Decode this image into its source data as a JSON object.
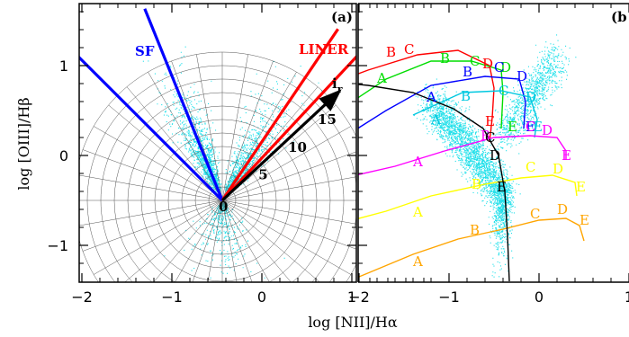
{
  "chart_data": [
    {
      "panel": "(a)",
      "type": "scatter",
      "xlabel": "log [NII]/Hα",
      "ylabel": "log [OIII]/Hβ",
      "xlim": [
        -2.3,
        1.1
      ],
      "ylim": [
        -1.45,
        1.7
      ],
      "x_ticks": [
        "−2",
        "−1",
        "0",
        "1"
      ],
      "y_ticks": [
        "−1",
        "0",
        "1"
      ],
      "origin": [
        -0.44,
        -0.5
      ],
      "polar_grid": {
        "r_step": 0.1,
        "r_max": 1.1,
        "angle_step_deg": 10
      },
      "lines": [
        {
          "name": "SF",
          "color": "#0000ff",
          "angles_deg": [
            135,
            112
          ]
        },
        {
          "name": "LINER",
          "color": "#ff0000",
          "angles_deg": [
            56,
            47
          ]
        }
      ],
      "arrow": {
        "label": "i",
        "subscript": "r",
        "angle_deg": 43,
        "length": 1.75,
        "color": "#000000"
      },
      "arrow_ticks": [
        {
          "label": "0",
          "r": 0.0
        },
        {
          "label": "5",
          "r": 0.55
        },
        {
          "label": "10",
          "r": 1.0
        },
        {
          "label": "15",
          "r": 1.45
        }
      ],
      "labels": {
        "sf": "SF",
        "liner": "LINER",
        "panel": "(a)"
      }
    },
    {
      "panel": "(b)",
      "type": "line",
      "xlabel": "log [NII]/Hα",
      "xlim": [
        -2.3,
        1.1
      ],
      "ylim": [
        -1.45,
        1.7
      ],
      "x_ticks": [
        "−2",
        "−1",
        "0",
        "1"
      ],
      "marker_labels": [
        "A",
        "B",
        "C",
        "D",
        "E"
      ],
      "series": [
        {
          "color": "#ff0000",
          "points": [
            [
              -2.3,
              0.8
            ],
            [
              -1.9,
              0.95
            ],
            [
              -1.35,
              1.12
            ],
            [
              -0.9,
              1.17
            ],
            [
              -0.55,
              1.0
            ],
            [
              -0.5,
              0.75
            ],
            [
              -0.52,
              0.42
            ],
            [
              -0.55,
              0.15
            ]
          ]
        },
        {
          "color": "#00dd00",
          "points": [
            [
              -2.3,
              0.45
            ],
            [
              -1.7,
              0.85
            ],
            [
              -1.2,
              1.05
            ],
            [
              -0.75,
              1.05
            ],
            [
              -0.42,
              0.95
            ],
            [
              -0.4,
              0.7
            ],
            [
              -0.42,
              0.3
            ]
          ]
        },
        {
          "color": "#0000ff",
          "points": [
            [
              -2.3,
              0.12
            ],
            [
              -1.7,
              0.5
            ],
            [
              -1.2,
              0.78
            ],
            [
              -0.6,
              0.88
            ],
            [
              -0.22,
              0.85
            ],
            [
              -0.15,
              0.6
            ],
            [
              -0.17,
              0.3
            ]
          ]
        },
        {
          "color": "#00c8e0",
          "points": [
            [
              -1.4,
              0.45
            ],
            [
              -0.85,
              0.7
            ],
            [
              -0.42,
              0.72
            ],
            [
              -0.1,
              0.65
            ],
            [
              -0.02,
              0.4
            ],
            [
              -0.05,
              0.2
            ]
          ]
        },
        {
          "color": "#ff00ff",
          "points": [
            [
              -2.3,
              -0.28
            ],
            [
              -1.6,
              -0.12
            ],
            [
              -1.05,
              0.05
            ],
            [
              -0.5,
              0.2
            ],
            [
              -0.1,
              0.22
            ],
            [
              0.2,
              0.2
            ],
            [
              0.3,
              0.05
            ],
            [
              0.3,
              -0.05
            ]
          ]
        },
        {
          "color": "#ffff00",
          "points": [
            [
              -2.3,
              -0.78
            ],
            [
              -1.7,
              -0.62
            ],
            [
              -1.2,
              -0.45
            ],
            [
              -0.6,
              -0.32
            ],
            [
              -0.2,
              -0.25
            ],
            [
              0.15,
              -0.22
            ],
            [
              0.4,
              -0.3
            ],
            [
              0.42,
              -0.45
            ]
          ]
        },
        {
          "color": "#ffa500",
          "points": [
            [
              -2.0,
              -1.35
            ],
            [
              -1.4,
              -1.1
            ],
            [
              -0.9,
              -0.93
            ],
            [
              -0.4,
              -0.82
            ],
            [
              0.0,
              -0.72
            ],
            [
              0.3,
              -0.7
            ],
            [
              0.45,
              -0.78
            ],
            [
              0.5,
              -0.95
            ]
          ]
        },
        {
          "color": "#000000",
          "points": [
            [
              -2.3,
              0.82
            ],
            [
              -1.9,
              0.78
            ],
            [
              -1.4,
              0.7
            ],
            [
              -0.95,
              0.52
            ],
            [
              -0.62,
              0.3
            ],
            [
              -0.45,
              0.0
            ],
            [
              -0.38,
              -0.4
            ],
            [
              -0.35,
              -0.9
            ],
            [
              -0.33,
              -1.4
            ]
          ]
        }
      ],
      "marker_sets": [
        {
          "color": "#ff0000",
          "points": [
            [
              -2.25,
              0.97
            ],
            [
              -1.65,
              1.15
            ],
            [
              -1.45,
              1.18
            ],
            [
              -0.58,
              1.02
            ],
            [
              -0.55,
              0.38
            ]
          ]
        },
        {
          "color": "#00dd00",
          "points": [
            [
              -1.75,
              0.86
            ],
            [
              -1.05,
              1.08
            ],
            [
              -0.72,
              1.05
            ],
            [
              -0.38,
              0.98
            ],
            [
              -0.3,
              0.32
            ]
          ]
        },
        {
          "color": "#0000ff",
          "points": [
            [
              -1.2,
              0.65
            ],
            [
              -0.8,
              0.93
            ],
            [
              -0.45,
              0.98
            ],
            [
              -0.2,
              0.88
            ],
            [
              -0.1,
              0.32
            ]
          ]
        },
        {
          "color": "#00c8e0",
          "points": [
            [
              -1.15,
              0.4
            ],
            [
              -0.82,
              0.66
            ],
            [
              -0.4,
              0.72
            ],
            [
              -0.1,
              0.65
            ],
            [
              -0.02,
              0.32
            ]
          ]
        },
        {
          "color": "#ff00ff",
          "points": [
            [
              -1.35,
              -0.07
            ],
            [
              -0.6,
              0.22
            ],
            [
              -0.1,
              0.32
            ],
            [
              0.08,
              0.28
            ],
            [
              0.3,
              0.0
            ]
          ]
        },
        {
          "color": "#ffff00",
          "points": [
            [
              -1.35,
              -0.63
            ],
            [
              -0.7,
              -0.32
            ],
            [
              -0.1,
              -0.13
            ],
            [
              0.2,
              -0.15
            ],
            [
              0.46,
              -0.35
            ]
          ]
        },
        {
          "color": "#ffa500",
          "points": [
            [
              -1.35,
              -1.18
            ],
            [
              -0.72,
              -0.83
            ],
            [
              -0.05,
              -0.65
            ],
            [
              0.25,
              -0.6
            ],
            [
              0.5,
              -0.72
            ]
          ]
        }
      ],
      "black_markers": [
        [
          -0.55,
          0.2
        ],
        [
          -0.5,
          0.0
        ],
        [
          -0.42,
          -0.35
        ]
      ],
      "labels": {
        "panel": "(b"
      }
    }
  ]
}
